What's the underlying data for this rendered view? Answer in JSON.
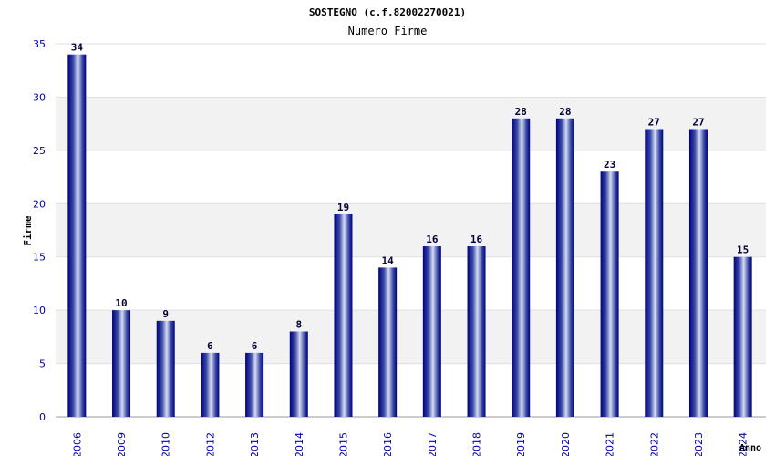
{
  "chart_data": {
    "type": "bar",
    "title": "SOSTEGNO (c.f.82002270021)",
    "subtitle": "Numero Firme",
    "xlabel": "Anno",
    "ylabel": "Firme",
    "ylim": [
      0,
      35
    ],
    "yticks": [
      0,
      5,
      10,
      15,
      20,
      25,
      30,
      35
    ],
    "ytick_labels": [
      "0",
      "5",
      "10",
      "15",
      "20",
      "25",
      "30",
      "35"
    ],
    "categories": [
      "2006",
      "2009",
      "2010",
      "2012",
      "2013",
      "2014",
      "2015",
      "2016",
      "2017",
      "2018",
      "2019",
      "2020",
      "2021",
      "2022",
      "2023",
      "2024"
    ],
    "values": [
      34,
      10,
      9,
      6,
      6,
      8,
      19,
      14,
      16,
      16,
      28,
      28,
      23,
      27,
      27,
      15
    ],
    "value_labels": [
      "34",
      "10",
      "9",
      "6",
      "6",
      "8",
      "19",
      "14",
      "16",
      "16",
      "28",
      "28",
      "23",
      "27",
      "27",
      "15"
    ],
    "grid": true,
    "colors": {
      "bar_dark": "#00007a",
      "bar_mid": "#3a4aa8",
      "bar_light": "#d6dcf0",
      "band": "#f2f2f2",
      "axis_text": "#0000aa"
    }
  }
}
